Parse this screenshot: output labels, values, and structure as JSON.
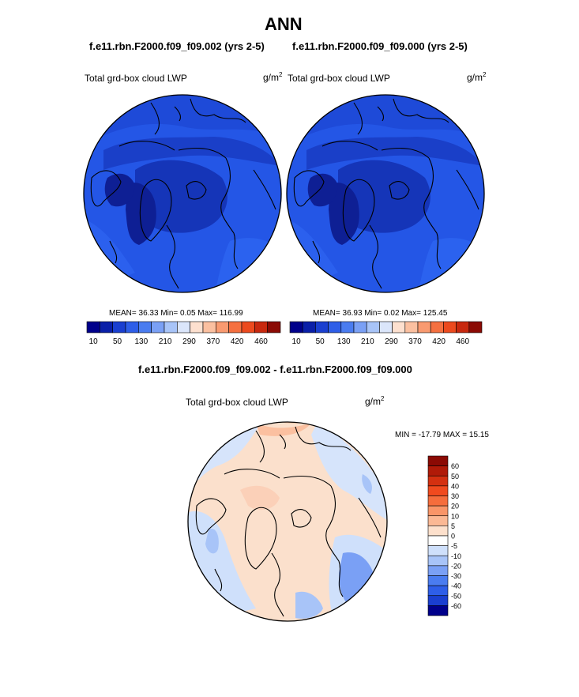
{
  "title": "ANN",
  "panels": [
    {
      "case": "f.e11.rbn.F2000.f09_f09.002 (yrs 2-5)",
      "field": "Total grd-box cloud LWP",
      "units": "g/m",
      "units_exp": "2",
      "stats_text": "MEAN=  36.33  Min=   0.05  Max= 116.99",
      "mean": 36.33,
      "min": 0.05,
      "max": 116.99
    },
    {
      "case": "f.e11.rbn.F2000.f09_f09.000 (yrs 2-5)",
      "field": "Total grd-box cloud LWP",
      "units": "g/m",
      "units_exp": "2",
      "stats_text": "MEAN=  36.93  Min=   0.02  Max= 125.45",
      "mean": 36.93,
      "min": 0.02,
      "max": 125.45
    }
  ],
  "abs_colorbar": {
    "colors": [
      "#00008b",
      "#0a1fa8",
      "#1a3fd0",
      "#2e5ee8",
      "#4a7cf0",
      "#7aa0f5",
      "#a8c4f8",
      "#dbe6fb",
      "#fde0cf",
      "#fbc0a0",
      "#f99a70",
      "#f57040",
      "#ec4a1e",
      "#c8280e",
      "#8b0a04"
    ],
    "tick_labels": [
      "10",
      "50",
      "130",
      "210",
      "290",
      "370",
      "420",
      "460"
    ]
  },
  "diff": {
    "case": "f.e11.rbn.F2000.f09_f09.002 - f.e11.rbn.F2000.f09_f09.000",
    "field": "Total grd-box cloud LWP",
    "units": "g/m",
    "units_exp": "2",
    "stats_text": "MIN = -17.79 MAX =  15.15",
    "min": -17.79,
    "max": 15.15,
    "colorbar": {
      "colors": [
        "#8b0a04",
        "#b01a08",
        "#d43010",
        "#f04a1e",
        "#f56d3c",
        "#f99568",
        "#fbb894",
        "#fde0cc",
        "#ffffff",
        "#cfe0fb",
        "#a8c4f8",
        "#7aa0f5",
        "#4a7cf0",
        "#2e5ee8",
        "#1a3fd0",
        "#00008b"
      ],
      "labels": [
        "60",
        "50",
        "40",
        "30",
        "20",
        "10",
        "5",
        "0",
        "-5",
        "-10",
        "-20",
        "-30",
        "-40",
        "-50",
        "-60"
      ]
    }
  }
}
